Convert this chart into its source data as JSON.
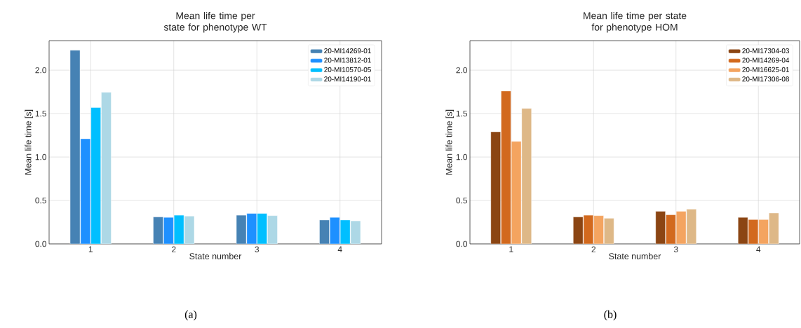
{
  "chart_data": [
    {
      "type": "bar",
      "title": "Mean life time per state for phenotype WT",
      "xlabel": "State number",
      "ylabel": "Mean life time [s]",
      "categories": [
        "1",
        "2",
        "3",
        "4"
      ],
      "series": [
        {
          "name": "20-MI14269-01",
          "color": "#4682b4",
          "values": [
            2.23,
            0.31,
            0.33,
            0.275
          ]
        },
        {
          "name": "20-MI13812-01",
          "color": "#1e90ff",
          "values": [
            1.21,
            0.305,
            0.35,
            0.305
          ]
        },
        {
          "name": "20-MI10570-05",
          "color": "#00bfff",
          "values": [
            1.57,
            0.33,
            0.35,
            0.275
          ]
        },
        {
          "name": "20-MI14190-01",
          "color": "#add8e6",
          "values": [
            1.745,
            0.32,
            0.325,
            0.265
          ]
        }
      ],
      "ylim": [
        0,
        2.34
      ],
      "yticks": [
        {
          "value": 0,
          "label": "0.0"
        },
        {
          "value": 0.5,
          "label": "0.5"
        },
        {
          "value": 1,
          "label": "1.0"
        },
        {
          "value": 1.5,
          "label": "1.5"
        },
        {
          "value": 2,
          "label": "2.0"
        }
      ],
      "grid": true,
      "legend": "top right",
      "annotations": [
        "(a)"
      ]
    },
    {
      "type": "bar",
      "title": "Mean life time per state for phenotype HOM",
      "xlabel": "State number",
      "ylabel": "Mean life time [s]",
      "categories": [
        "1",
        "2",
        "3",
        "4"
      ],
      "series": [
        {
          "name": "20-MI17304-03",
          "color": "#8b4513",
          "values": [
            1.29,
            0.31,
            0.375,
            0.305
          ]
        },
        {
          "name": "20-MI14269-04",
          "color": "#d2691e",
          "values": [
            1.76,
            0.33,
            0.335,
            0.28
          ]
        },
        {
          "name": "20-MI16625-01",
          "color": "#f4a460",
          "values": [
            1.18,
            0.325,
            0.375,
            0.28
          ]
        },
        {
          "name": "20-MI17306-08",
          "color": "#deb887",
          "values": [
            1.56,
            0.295,
            0.4,
            0.355
          ]
        }
      ],
      "ylim": [
        0,
        2.34
      ],
      "yticks": [
        {
          "value": 0,
          "label": "0.0"
        },
        {
          "value": 0.5,
          "label": "0.5"
        },
        {
          "value": 1,
          "label": "1.0"
        },
        {
          "value": 1.5,
          "label": "1.5"
        },
        {
          "value": 2,
          "label": "2.0"
        }
      ],
      "grid": true,
      "legend": "top right",
      "annotations": [
        "(b)"
      ]
    }
  ]
}
